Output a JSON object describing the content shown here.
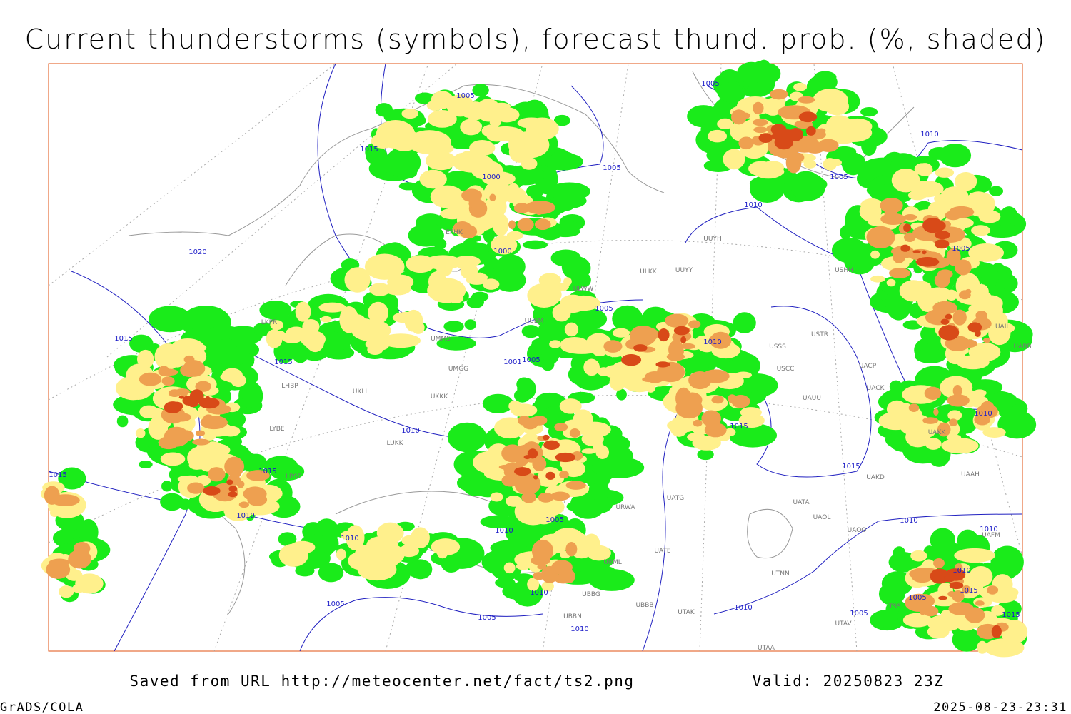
{
  "title": "Current thunderstorms (symbols), forecast thund. prob. (%, shaded)",
  "footer": {
    "source": "Saved from URL http://meteocenter.net/fact/ts2.png",
    "valid": "Valid: 20250823 23Z",
    "software": "GrADS/COLA",
    "timestamp": "2025-08-23-23:31"
  },
  "isobar_labels": [
    "1005",
    "1015",
    "1000",
    "1005",
    "1020",
    "1000",
    "1005",
    "1015",
    "1015",
    "1001",
    "1005",
    "1010",
    "1010",
    "1005",
    "1010",
    "1005",
    "1005",
    "1010",
    "1010",
    "1015",
    "1015",
    "1010",
    "1010",
    "1010",
    "1005",
    "1005",
    "1005",
    "1010",
    "1010",
    "1010",
    "1015",
    "1015",
    "1010",
    "1010",
    "1010",
    "1015",
    "1005",
    "1005",
    "1015"
  ],
  "stations": [
    "EFHK",
    "UUYH",
    "ULKK",
    "UUYY",
    "ULWW",
    "USHH",
    "UUEM",
    "UMMS",
    "UMGG",
    "UKKK",
    "UKLI",
    "USSS",
    "USTR",
    "UACP",
    "USCC",
    "UAUU",
    "UACK",
    "UATG",
    "URWA",
    "UATA",
    "UAOL",
    "UAOO",
    "UATE",
    "UTNN",
    "UTAK",
    "UBBB",
    "UTAA",
    "UTSS",
    "UTAV",
    "LYBE",
    "LBSF",
    "LHBP",
    "LKPR",
    "LUKK",
    "UBBN",
    "UBBG",
    "URML",
    "UAKD",
    "UAKK",
    "UAAH",
    "UAFM",
    "UAII",
    "UABB"
  ]
}
